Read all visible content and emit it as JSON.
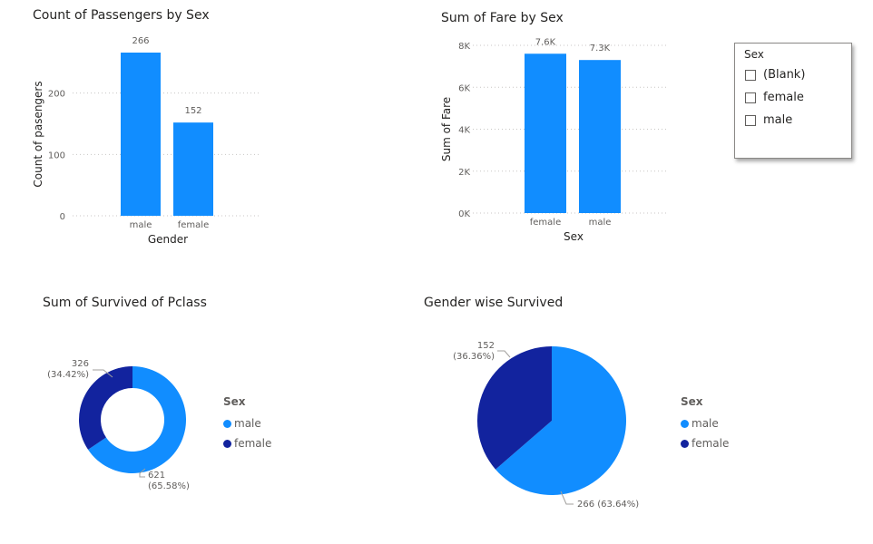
{
  "colors": {
    "primary": "#118dff",
    "secondary": "#12239e",
    "grid": "#c8c6c4",
    "text": "#605e5c"
  },
  "visuals": {
    "passengers": {
      "title": "Count of Passengers by Sex"
    },
    "fare": {
      "title": "Sum of Fare by Sex"
    },
    "pclass": {
      "title": "Sum of Survived of Pclass"
    },
    "gender": {
      "title": "Gender wise Survived"
    }
  },
  "slicer": {
    "title": "Sex",
    "items": [
      {
        "label": "(Blank)",
        "checked": false
      },
      {
        "label": "female",
        "checked": false
      },
      {
        "label": "male",
        "checked": false
      }
    ]
  },
  "legends": {
    "pclass": {
      "title": "Sex",
      "items": [
        "male",
        "female"
      ]
    },
    "gender": {
      "title": "Sex",
      "items": [
        "male",
        "female"
      ]
    }
  },
  "chart_data": [
    {
      "type": "bar",
      "title": "Count of Passengers by Sex",
      "categories": [
        "male",
        "female"
      ],
      "values": [
        266,
        152
      ],
      "data_labels": [
        "266",
        "152"
      ],
      "xlabel": "Gender",
      "ylabel": "Count of pasengers",
      "ylim": [
        0,
        266
      ],
      "yticks": [
        0,
        100,
        200
      ],
      "ytick_labels": [
        "0",
        "100",
        "200"
      ],
      "grid": true
    },
    {
      "type": "bar",
      "title": "Sum of Fare by Sex",
      "categories": [
        "female",
        "male"
      ],
      "values": [
        7600,
        7300
      ],
      "data_labels": [
        "7.6K",
        "7.3K"
      ],
      "xlabel": "Sex",
      "ylabel": "Sum of Fare",
      "ylim": [
        0,
        8000
      ],
      "yticks": [
        0,
        2000,
        4000,
        6000,
        8000
      ],
      "ytick_labels": [
        "0K",
        "2K",
        "4K",
        "6K",
        "8K"
      ],
      "grid": true
    },
    {
      "type": "pie",
      "title": "Sum of Survived of Pclass",
      "donut": true,
      "categories": [
        "male",
        "female"
      ],
      "values": [
        621,
        326
      ],
      "data_labels": [
        [
          "621",
          "(65.58%)"
        ],
        [
          "326",
          "(34.42%)"
        ]
      ],
      "legend_title": "Sex",
      "legend": "right"
    },
    {
      "type": "pie",
      "title": "Gender wise Survived",
      "donut": false,
      "categories": [
        "male",
        "female"
      ],
      "values": [
        266,
        152
      ],
      "data_labels": [
        [
          "266 (63.64%)"
        ],
        [
          "152",
          "(36.36%)"
        ]
      ],
      "legend_title": "Sex",
      "legend": "right"
    }
  ]
}
